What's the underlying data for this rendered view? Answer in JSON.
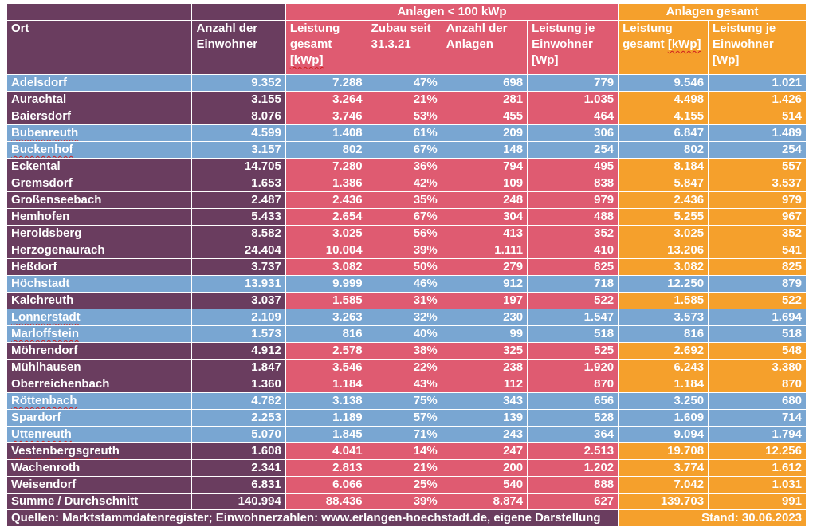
{
  "table": {
    "group_headers": {
      "lt100": "Anlagen < 100 kWp",
      "gesamt": "Anlagen gesamt"
    },
    "column_headers": {
      "ort": "Ort",
      "einwohner": "Anzahl der Einwohner",
      "leistung_gesamt_a": "Leistung gesamt [kWp]",
      "zubau": "Zubau seit 31.3.21",
      "anzahl_anlagen": "Anzahl der Anlagen",
      "leistung_je_a": "Leistung je Einwohner [Wp]",
      "leistung_gesamt_b": "Leistung gesamt [kWp]",
      "leistung_je_b": "Leistung je Einwohner [Wp]"
    },
    "rows": [
      {
        "ort": "Adelsdorf",
        "einwohner": "9.352",
        "lg": "7.288",
        "zubau": "47%",
        "anzahl": "698",
        "lj": "779",
        "gl": "9.546",
        "gj": "1.021",
        "band": "blue"
      },
      {
        "ort": "Aurachtal",
        "einwohner": "3.155",
        "lg": "3.264",
        "zubau": "21%",
        "anzahl": "281",
        "lj": "1.035",
        "gl": "4.498",
        "gj": "1.426",
        "band": "color"
      },
      {
        "ort": "Baiersdorf",
        "einwohner": "8.076",
        "lg": "3.746",
        "zubau": "53%",
        "anzahl": "455",
        "lj": "464",
        "gl": "4.155",
        "gj": "514",
        "band": "color"
      },
      {
        "ort": "Bubenreuth",
        "einwohner": "4.599",
        "lg": "1.408",
        "zubau": "61%",
        "anzahl": "209",
        "lj": "306",
        "gl": "6.847",
        "gj": "1.489",
        "band": "blue"
      },
      {
        "ort": "Buckenhof",
        "einwohner": "3.157",
        "lg": "802",
        "zubau": "67%",
        "anzahl": "148",
        "lj": "254",
        "gl": "802",
        "gj": "254",
        "band": "blue"
      },
      {
        "ort": "Eckental",
        "einwohner": "14.705",
        "lg": "7.280",
        "zubau": "36%",
        "anzahl": "794",
        "lj": "495",
        "gl": "8.184",
        "gj": "557",
        "band": "color"
      },
      {
        "ort": "Gremsdorf",
        "einwohner": "1.653",
        "lg": "1.386",
        "zubau": "42%",
        "anzahl": "109",
        "lj": "838",
        "gl": "5.847",
        "gj": "3.537",
        "band": "color"
      },
      {
        "ort": "Großenseebach",
        "einwohner": "2.487",
        "lg": "2.436",
        "zubau": "35%",
        "anzahl": "248",
        "lj": "979",
        "gl": "2.436",
        "gj": "979",
        "band": "color"
      },
      {
        "ort": "Hemhofen",
        "einwohner": "5.433",
        "lg": "2.654",
        "zubau": "67%",
        "anzahl": "304",
        "lj": "488",
        "gl": "5.255",
        "gj": "967",
        "band": "color"
      },
      {
        "ort": "Heroldsberg",
        "einwohner": "8.582",
        "lg": "3.025",
        "zubau": "56%",
        "anzahl": "413",
        "lj": "352",
        "gl": "3.025",
        "gj": "352",
        "band": "color"
      },
      {
        "ort": "Herzogenaurach",
        "einwohner": "24.404",
        "lg": "10.004",
        "zubau": "39%",
        "anzahl": "1.111",
        "lj": "410",
        "gl": "13.206",
        "gj": "541",
        "band": "color"
      },
      {
        "ort": "Heßdorf",
        "einwohner": "3.737",
        "lg": "3.082",
        "zubau": "50%",
        "anzahl": "279",
        "lj": "825",
        "gl": "3.082",
        "gj": "825",
        "band": "color"
      },
      {
        "ort": "Höchstadt",
        "einwohner": "13.931",
        "lg": "9.999",
        "zubau": "46%",
        "anzahl": "912",
        "lj": "718",
        "gl": "12.250",
        "gj": "879",
        "band": "blue"
      },
      {
        "ort": "Kalchreuth",
        "einwohner": "3.037",
        "lg": "1.585",
        "zubau": "31%",
        "anzahl": "197",
        "lj": "522",
        "gl": "1.585",
        "gj": "522",
        "band": "color"
      },
      {
        "ort": "Lonnerstadt",
        "einwohner": "2.109",
        "lg": "3.263",
        "zubau": "32%",
        "anzahl": "230",
        "lj": "1.547",
        "gl": "3.573",
        "gj": "1.694",
        "band": "blue"
      },
      {
        "ort": "Marloffstein",
        "einwohner": "1.573",
        "lg": "816",
        "zubau": "40%",
        "anzahl": "99",
        "lj": "518",
        "gl": "816",
        "gj": "518",
        "band": "blue"
      },
      {
        "ort": "Möhrendorf",
        "einwohner": "4.912",
        "lg": "2.578",
        "zubau": "38%",
        "anzahl": "325",
        "lj": "525",
        "gl": "2.692",
        "gj": "548",
        "band": "color"
      },
      {
        "ort": "Mühlhausen",
        "einwohner": "1.847",
        "lg": "3.546",
        "zubau": "22%",
        "anzahl": "238",
        "lj": "1.920",
        "gl": "6.243",
        "gj": "3.380",
        "band": "color"
      },
      {
        "ort": "Oberreichenbach",
        "einwohner": "1.360",
        "lg": "1.184",
        "zubau": "43%",
        "anzahl": "112",
        "lj": "870",
        "gl": "1.184",
        "gj": "870",
        "band": "color"
      },
      {
        "ort": "Röttenbach",
        "einwohner": "4.782",
        "lg": "3.138",
        "zubau": "75%",
        "anzahl": "343",
        "lj": "656",
        "gl": "3.250",
        "gj": "680",
        "band": "blue"
      },
      {
        "ort": "Spardorf",
        "einwohner": "2.253",
        "lg": "1.189",
        "zubau": "57%",
        "anzahl": "139",
        "lj": "528",
        "gl": "1.609",
        "gj": "714",
        "band": "blue"
      },
      {
        "ort": "Uttenreuth",
        "einwohner": "5.070",
        "lg": "1.845",
        "zubau": "71%",
        "anzahl": "243",
        "lj": "364",
        "gl": "9.094",
        "gj": "1.794",
        "band": "blue"
      },
      {
        "ort": "Vestenbergsgreuth",
        "einwohner": "1.608",
        "lg": "4.041",
        "zubau": "14%",
        "anzahl": "247",
        "lj": "2.513",
        "gl": "19.708",
        "gj": "12.256",
        "band": "color"
      },
      {
        "ort": "Wachenroth",
        "einwohner": "2.341",
        "lg": "2.813",
        "zubau": "21%",
        "anzahl": "200",
        "lj": "1.202",
        "gl": "3.774",
        "gj": "1.612",
        "band": "color"
      },
      {
        "ort": "Weisendorf",
        "einwohner": "6.831",
        "lg": "6.066",
        "zubau": "25%",
        "anzahl": "540",
        "lj": "888",
        "gl": "7.042",
        "gj": "1.031",
        "band": "color"
      }
    ],
    "summary": {
      "ort": "Summe / Durchschnitt",
      "einwohner": "140.994",
      "lg": "88.436",
      "zubau": "39%",
      "anzahl": "8.874",
      "lj": "627",
      "gl": "139.703",
      "gj": "991"
    },
    "footer": {
      "sources": "Quellen: Marktstammdatenregister; Einwohnerzahlen: www.erlangen-hoechstadt.de, eigene Darstellung",
      "stand": "Stand: 30.06.2023"
    }
  },
  "colors": {
    "purple": "#6a3d5f",
    "pink": "#df5b71",
    "orange": "#f5a02c",
    "blue": "#79a6d2"
  }
}
